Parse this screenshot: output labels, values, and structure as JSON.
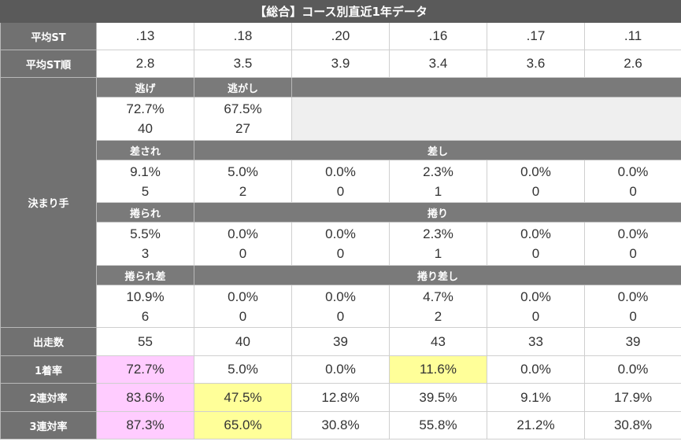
{
  "title": "【総合】コース別直近1年データ",
  "avg_st": {
    "label": "平均ST",
    "values": [
      ".13",
      ".18",
      ".20",
      ".16",
      ".17",
      ".11"
    ]
  },
  "avg_st_rank": {
    "label": "平均ST順",
    "values": [
      "2.8",
      "3.5",
      "3.9",
      "3.4",
      "3.6",
      "2.6"
    ]
  },
  "kimarite": {
    "label": "決まり手",
    "nige": {
      "label": "逃げ",
      "pct": "72.7%",
      "count": "40"
    },
    "nigashi": {
      "label": "逃がし",
      "pct": "67.5%",
      "count": "27"
    },
    "sasare": {
      "label": "差され",
      "pct": "9.1%",
      "count": "5"
    },
    "sashi": {
      "label": "差し",
      "pct": [
        "5.0%",
        "0.0%",
        "2.3%",
        "0.0%",
        "0.0%"
      ],
      "count": [
        "2",
        "0",
        "1",
        "0",
        "0"
      ]
    },
    "makurare": {
      "label": "捲られ",
      "pct": "5.5%",
      "count": "3"
    },
    "makuri": {
      "label": "捲り",
      "pct": [
        "0.0%",
        "0.0%",
        "2.3%",
        "0.0%",
        "0.0%"
      ],
      "count": [
        "0",
        "0",
        "1",
        "0",
        "0"
      ]
    },
    "makurare_sashi": {
      "label": "捲られ差",
      "pct": "10.9%",
      "count": "6"
    },
    "makuri_sashi": {
      "label": "捲り差し",
      "pct": [
        "0.0%",
        "0.0%",
        "4.7%",
        "0.0%",
        "0.0%"
      ],
      "count": [
        "0",
        "0",
        "2",
        "0",
        "0"
      ]
    }
  },
  "starts": {
    "label": "出走数",
    "values": [
      "55",
      "40",
      "39",
      "43",
      "33",
      "39"
    ]
  },
  "win_rate": {
    "label": "1着率",
    "values": [
      "72.7%",
      "5.0%",
      "0.0%",
      "11.6%",
      "0.0%",
      "0.0%"
    ]
  },
  "quinella_rate": {
    "label": "2連対率",
    "values": [
      "83.6%",
      "47.5%",
      "12.8%",
      "39.5%",
      "9.1%",
      "17.9%"
    ]
  },
  "trio_rate": {
    "label": "3連対率",
    "values": [
      "87.3%",
      "65.0%",
      "30.8%",
      "55.8%",
      "21.2%",
      "30.8%"
    ]
  },
  "colors": {
    "header_bg": "#5a5a5a",
    "label_bg": "#717171",
    "pink": "#ffccff",
    "yellow": "#ffff99"
  }
}
